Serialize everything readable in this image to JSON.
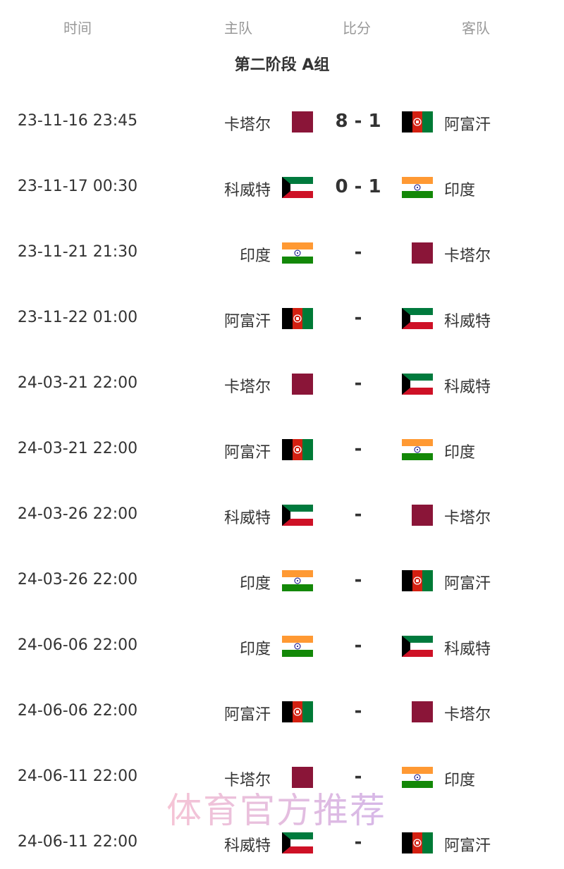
{
  "header": {
    "time": "时间",
    "home": "主队",
    "score": "比分",
    "away": "客队"
  },
  "title": "第二阶段 A组",
  "flags": {
    "卡塔尔": "qatar",
    "阿富汗": "afghanistan",
    "科威特": "kuwait",
    "印度": "india"
  },
  "matches": [
    {
      "time": "23-11-16 23:45",
      "home": "卡塔尔",
      "score": "8 - 1",
      "away": "阿富汗"
    },
    {
      "time": "23-11-17 00:30",
      "home": "科威特",
      "score": "0 - 1",
      "away": "印度"
    },
    {
      "time": "23-11-21 21:30",
      "home": "印度",
      "score": "-",
      "away": "卡塔尔"
    },
    {
      "time": "23-11-22 01:00",
      "home": "阿富汗",
      "score": "-",
      "away": "科威特"
    },
    {
      "time": "24-03-21 22:00",
      "home": "卡塔尔",
      "score": "-",
      "away": "科威特"
    },
    {
      "time": "24-03-21 22:00",
      "home": "阿富汗",
      "score": "-",
      "away": "印度"
    },
    {
      "time": "24-03-26 22:00",
      "home": "科威特",
      "score": "-",
      "away": "卡塔尔"
    },
    {
      "time": "24-03-26 22:00",
      "home": "印度",
      "score": "-",
      "away": "阿富汗"
    },
    {
      "time": "24-06-06 22:00",
      "home": "印度",
      "score": "-",
      "away": "科威特"
    },
    {
      "time": "24-06-06 22:00",
      "home": "阿富汗",
      "score": "-",
      "away": "卡塔尔"
    },
    {
      "time": "24-06-11 22:00",
      "home": "卡塔尔",
      "score": "-",
      "away": "印度"
    },
    {
      "time": "24-06-11 22:00",
      "home": "科威特",
      "score": "-",
      "away": "阿富汗"
    }
  ],
  "watermark": "体育官方推荐"
}
